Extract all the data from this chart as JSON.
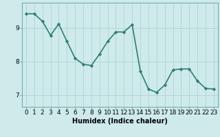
{
  "x": [
    0,
    1,
    2,
    3,
    4,
    5,
    6,
    7,
    8,
    9,
    10,
    11,
    12,
    13,
    14,
    15,
    16,
    17,
    18,
    19,
    20,
    21,
    22,
    23
  ],
  "y": [
    9.42,
    9.42,
    9.2,
    8.78,
    9.12,
    8.6,
    8.1,
    7.92,
    7.88,
    8.22,
    8.6,
    8.88,
    8.88,
    9.1,
    7.72,
    7.18,
    7.08,
    7.3,
    7.75,
    7.78,
    7.78,
    7.42,
    7.2,
    7.18
  ],
  "line_color": "#2e7d6e",
  "marker": "D",
  "marker_size": 2.2,
  "bg_color": "#ceeaea",
  "grid_color": "#afd4d4",
  "xlabel": "Humidex (Indice chaleur)",
  "xlim": [
    -0.5,
    23.5
  ],
  "ylim": [
    6.65,
    9.75
  ],
  "yticks": [
    7,
    8,
    9
  ],
  "xlabel_fontsize": 7,
  "tick_fontsize": 6.5,
  "line_width": 1.2,
  "spine_color": "#7aacac"
}
